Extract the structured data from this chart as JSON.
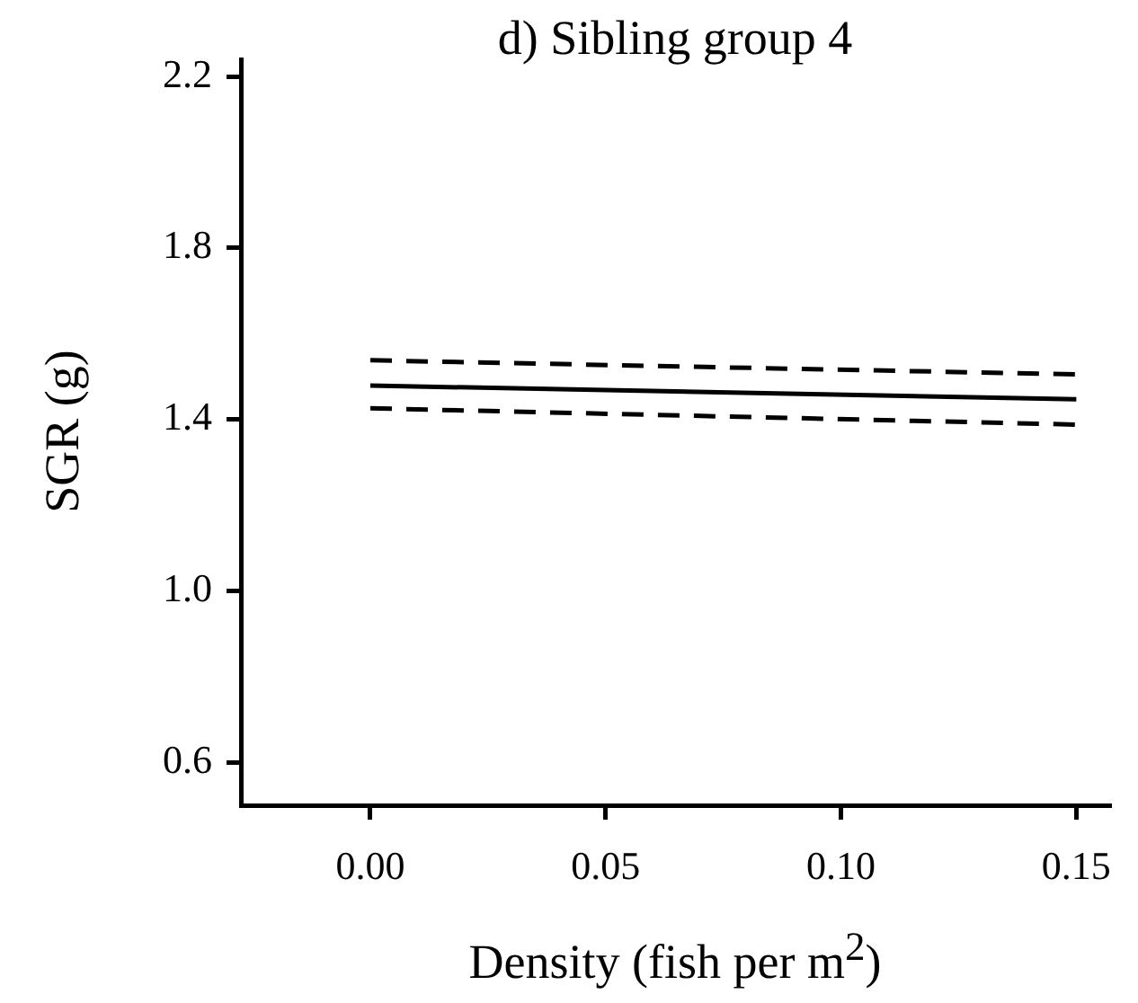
{
  "chart_data": {
    "type": "line",
    "title": "d) Sibling group 4",
    "xlabel": "Density (fish per m$^{2}$)",
    "ylabel": "SGR (g)",
    "x": [
      0,
      0.15
    ],
    "series": [
      {
        "color": "#000000",
        "values": [
          1.479,
          1.447
        ],
        "line_style": "solid"
      },
      {
        "color": "#000000",
        "values": [
          1.538,
          1.505
        ],
        "line_style": "dashed"
      },
      {
        "color": "#000000",
        "values": [
          1.426,
          1.388
        ],
        "line_style": "dashed"
      }
    ],
    "xlim": [
      -0.0275,
      0.157
    ],
    "xticks": [
      {
        "value": 0,
        "label": "0.00"
      },
      {
        "value": 0.05,
        "label": "0.05"
      },
      {
        "value": 0.1,
        "label": "0.10"
      },
      {
        "value": 0.15,
        "label": "0.15"
      }
    ],
    "ylim": [
      0.5,
      2.24
    ],
    "yticks": [
      {
        "value": 0.6,
        "label": "0.6"
      },
      {
        "value": 1.0,
        "label": "1.0"
      },
      {
        "value": 1.4,
        "label": "1.4"
      },
      {
        "value": 1.8,
        "label": "1.8"
      },
      {
        "value": 2.2,
        "label": "2.2"
      }
    ],
    "grid": false,
    "legend": false,
    "marker": "none"
  }
}
